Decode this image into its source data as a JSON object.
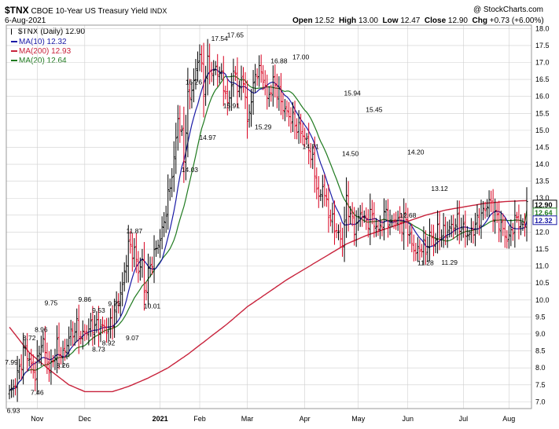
{
  "header": {
    "symbol": "$TNX",
    "name": "CBOE 10-Year US Treasury Yield",
    "exchange": "INDX",
    "watermark": "@ StockCharts.com",
    "date": "6-Aug-2021",
    "open_label": "Open",
    "open": "12.52",
    "high_label": "High",
    "high": "13.00",
    "low_label": "Low",
    "low": "12.47",
    "close_label": "Close",
    "close": "12.90",
    "chg_label": "Chg",
    "chg": "+0.73 (+6.00%)"
  },
  "legend": {
    "price": "$TNX (Daily) 12.90",
    "ma10": "MA(10) 12.32",
    "ma200": "MA(200) 12.93",
    "ma20": "MA(20) 12.64"
  },
  "colors": {
    "bar_up": "#000000",
    "bar_down": "#d8001f",
    "ma10": "#1a1aa6",
    "ma200": "#c8233c",
    "ma20": "#1f7a1f",
    "grid": "#cfcfcf"
  },
  "chart_data": {
    "type": "ohlc",
    "title": "$TNX CBOE 10-Year US Treasury Yield INDX",
    "ylim": [
      6.8,
      18.1
    ],
    "y_ticks": [
      7.0,
      7.5,
      8.0,
      8.5,
      9.0,
      9.5,
      10.0,
      10.5,
      11.0,
      11.5,
      12.0,
      12.5,
      13.0,
      13.5,
      14.0,
      14.5,
      15.0,
      15.5,
      16.0,
      16.5,
      17.0,
      17.5,
      18.0
    ],
    "x_labels": [
      {
        "label": "Nov",
        "x": 14
      },
      {
        "label": "Dec",
        "x": 38
      },
      {
        "label": "2021",
        "x": 76
      },
      {
        "label": "Feb",
        "x": 96
      },
      {
        "label": "Mar",
        "x": 120
      },
      {
        "label": "Apr",
        "x": 149
      },
      {
        "label": "May",
        "x": 176
      },
      {
        "label": "Jun",
        "x": 201
      },
      {
        "label": "Jul",
        "x": 229
      },
      {
        "label": "Aug",
        "x": 252
      }
    ],
    "bar_count": 262,
    "close_anchors": [
      [
        0,
        7.25
      ],
      [
        3,
        7.55
      ],
      [
        5,
        8.0
      ],
      [
        8,
        8.6
      ],
      [
        10,
        8.2
      ],
      [
        13,
        7.8
      ],
      [
        16,
        8.8
      ],
      [
        18,
        8.5
      ],
      [
        20,
        7.9
      ],
      [
        24,
        8.6
      ],
      [
        27,
        8.35
      ],
      [
        30,
        8.9
      ],
      [
        34,
        9.2
      ],
      [
        36,
        8.9
      ],
      [
        39,
        9.1
      ],
      [
        42,
        9.25
      ],
      [
        46,
        9.2
      ],
      [
        50,
        9.15
      ],
      [
        53,
        9.6
      ],
      [
        57,
        10.4
      ],
      [
        60,
        11.6
      ],
      [
        63,
        11.4
      ],
      [
        65,
        10.9
      ],
      [
        67,
        11.1
      ],
      [
        68,
        10.2
      ],
      [
        71,
        11.0
      ],
      [
        74,
        11.5
      ],
      [
        77,
        12.0
      ],
      [
        80,
        13.0
      ],
      [
        83,
        14.1
      ],
      [
        85,
        15.4
      ],
      [
        87,
        14.8
      ],
      [
        88,
        14.2
      ],
      [
        90,
        15.9
      ],
      [
        93,
        16.4
      ],
      [
        95,
        17.1
      ],
      [
        96,
        17.3
      ],
      [
        98,
        16.2
      ],
      [
        100,
        17.0
      ],
      [
        102,
        16.7
      ],
      [
        105,
        16.8
      ],
      [
        108,
        16.4
      ],
      [
        110,
        15.7
      ],
      [
        113,
        16.7
      ],
      [
        116,
        16.2
      ],
      [
        118,
        16.6
      ],
      [
        120,
        15.2
      ],
      [
        123,
        16.3
      ],
      [
        125,
        16.8
      ],
      [
        128,
        16.6
      ],
      [
        130,
        15.9
      ],
      [
        133,
        16.4
      ],
      [
        135,
        16.2
      ],
      [
        138,
        15.7
      ],
      [
        140,
        15.5
      ],
      [
        143,
        15.3
      ],
      [
        145,
        15.1
      ],
      [
        148,
        14.9
      ],
      [
        151,
        14.5
      ],
      [
        154,
        13.8
      ],
      [
        156,
        12.9
      ],
      [
        158,
        13.4
      ],
      [
        160,
        12.8
      ],
      [
        162,
        12.4
      ],
      [
        164,
        12.2
      ],
      [
        166,
        11.9
      ],
      [
        168,
        11.7
      ],
      [
        170,
        12.9
      ],
      [
        172,
        12.5
      ],
      [
        174,
        12.1
      ],
      [
        176,
        12.4
      ],
      [
        178,
        12.6
      ],
      [
        180,
        12.2
      ],
      [
        182,
        12.55
      ],
      [
        184,
        12.3
      ],
      [
        186,
        12.0
      ],
      [
        188,
        12.3
      ],
      [
        190,
        12.6
      ],
      [
        192,
        12.2
      ],
      [
        194,
        12.4
      ],
      [
        196,
        12.3
      ],
      [
        198,
        12.2
      ],
      [
        200,
        12.4
      ],
      [
        202,
        11.8
      ],
      [
        204,
        11.5
      ],
      [
        206,
        11.4
      ],
      [
        208,
        11.6
      ],
      [
        210,
        11.45
      ],
      [
        212,
        11.9
      ],
      [
        214,
        11.7
      ],
      [
        216,
        12.0
      ],
      [
        218,
        11.95
      ],
      [
        220,
        12.0
      ],
      [
        222,
        12.1
      ],
      [
        224,
        12.2
      ],
      [
        226,
        12.3
      ],
      [
        228,
        12.15
      ],
      [
        230,
        12.0
      ],
      [
        232,
        11.9
      ],
      [
        234,
        12.1
      ],
      [
        236,
        12.3
      ],
      [
        238,
        12.5
      ],
      [
        240,
        12.7
      ],
      [
        242,
        12.9
      ],
      [
        244,
        12.6
      ],
      [
        246,
        12.4
      ],
      [
        248,
        12.2
      ],
      [
        250,
        11.9
      ],
      [
        252,
        11.8
      ],
      [
        254,
        12.2
      ],
      [
        256,
        12.4
      ],
      [
        258,
        12.2
      ],
      [
        259,
        12.17
      ],
      [
        260,
        12.17
      ],
      [
        261,
        12.9
      ]
    ],
    "ma200_anchors": [
      [
        0,
        9.2
      ],
      [
        10,
        8.45
      ],
      [
        20,
        7.95
      ],
      [
        30,
        7.5
      ],
      [
        38,
        7.3
      ],
      [
        46,
        7.3
      ],
      [
        52,
        7.3
      ],
      [
        60,
        7.45
      ],
      [
        70,
        7.7
      ],
      [
        80,
        8.0
      ],
      [
        90,
        8.4
      ],
      [
        100,
        8.85
      ],
      [
        110,
        9.3
      ],
      [
        120,
        9.8
      ],
      [
        130,
        10.2
      ],
      [
        140,
        10.6
      ],
      [
        150,
        10.95
      ],
      [
        160,
        11.3
      ],
      [
        170,
        11.65
      ],
      [
        180,
        11.9
      ],
      [
        190,
        12.1
      ],
      [
        200,
        12.3
      ],
      [
        210,
        12.5
      ],
      [
        220,
        12.65
      ],
      [
        230,
        12.75
      ],
      [
        240,
        12.85
      ],
      [
        250,
        12.9
      ],
      [
        261,
        12.93
      ]
    ],
    "annotations": [
      {
        "text": "7.99",
        "i": 1,
        "y": 8.0,
        "pos": "above"
      },
      {
        "text": "6.93",
        "i": 2,
        "y": 6.93,
        "pos": "below"
      },
      {
        "text": "8.72",
        "i": 10,
        "y": 8.72,
        "pos": "above"
      },
      {
        "text": "8.96",
        "i": 16,
        "y": 8.96,
        "pos": "above"
      },
      {
        "text": "7.46",
        "i": 14,
        "y": 7.46,
        "pos": "below"
      },
      {
        "text": "9.75",
        "i": 21,
        "y": 9.75,
        "pos": "above"
      },
      {
        "text": "8.26",
        "i": 27,
        "y": 8.26,
        "pos": "below"
      },
      {
        "text": "9.86",
        "i": 38,
        "y": 9.86,
        "pos": "above"
      },
      {
        "text": "9.53",
        "i": 45,
        "y": 9.53,
        "pos": "above"
      },
      {
        "text": "8.73",
        "i": 45,
        "y": 8.73,
        "pos": "below"
      },
      {
        "text": "9.73",
        "i": 53,
        "y": 9.73,
        "pos": "above"
      },
      {
        "text": "8.92",
        "i": 50,
        "y": 8.92,
        "pos": "below"
      },
      {
        "text": "9.07",
        "i": 62,
        "y": 9.07,
        "pos": "below"
      },
      {
        "text": "11.87",
        "i": 63,
        "y": 11.87,
        "pos": "above"
      },
      {
        "text": "10.01",
        "i": 72,
        "y": 10.01,
        "pos": "below"
      },
      {
        "text": "14.03",
        "i": 91,
        "y": 14.03,
        "pos": "below"
      },
      {
        "text": "16.26",
        "i": 93,
        "y": 16.26,
        "pos": "above"
      },
      {
        "text": "14.97",
        "i": 100,
        "y": 14.97,
        "pos": "below"
      },
      {
        "text": "17.54",
        "i": 106,
        "y": 17.54,
        "pos": "above"
      },
      {
        "text": "17.65",
        "i": 114,
        "y": 17.65,
        "pos": "above"
      },
      {
        "text": "15.91",
        "i": 112,
        "y": 15.91,
        "pos": "below"
      },
      {
        "text": "15.29",
        "i": 128,
        "y": 15.29,
        "pos": "below"
      },
      {
        "text": "16.88",
        "i": 136,
        "y": 16.88,
        "pos": "above"
      },
      {
        "text": "17.00",
        "i": 147,
        "y": 17.0,
        "pos": "above"
      },
      {
        "text": "14.71",
        "i": 152,
        "y": 14.71,
        "pos": "below"
      },
      {
        "text": "15.94",
        "i": 173,
        "y": 15.94,
        "pos": "above"
      },
      {
        "text": "14.50",
        "i": 172,
        "y": 14.5,
        "pos": "below"
      },
      {
        "text": "15.45",
        "i": 184,
        "y": 15.45,
        "pos": "above"
      },
      {
        "text": "14.20",
        "i": 205,
        "y": 14.2,
        "pos": "above"
      },
      {
        "text": "12.68",
        "i": 201,
        "y": 12.68,
        "pos": "below"
      },
      {
        "text": "13.12",
        "i": 217,
        "y": 13.12,
        "pos": "above"
      },
      {
        "text": "11.28",
        "i": 210,
        "y": 11.28,
        "pos": "below"
      },
      {
        "text": "11.29",
        "i": 222,
        "y": 11.29,
        "pos": "below"
      }
    ],
    "right_tags": [
      {
        "text": "12.90",
        "y": 12.9,
        "style": "close"
      },
      {
        "text": "12.64",
        "y": 12.64,
        "style": "ma20"
      },
      {
        "text": "12.32",
        "y": 12.32,
        "style": "ma10"
      }
    ],
    "grid": true
  }
}
